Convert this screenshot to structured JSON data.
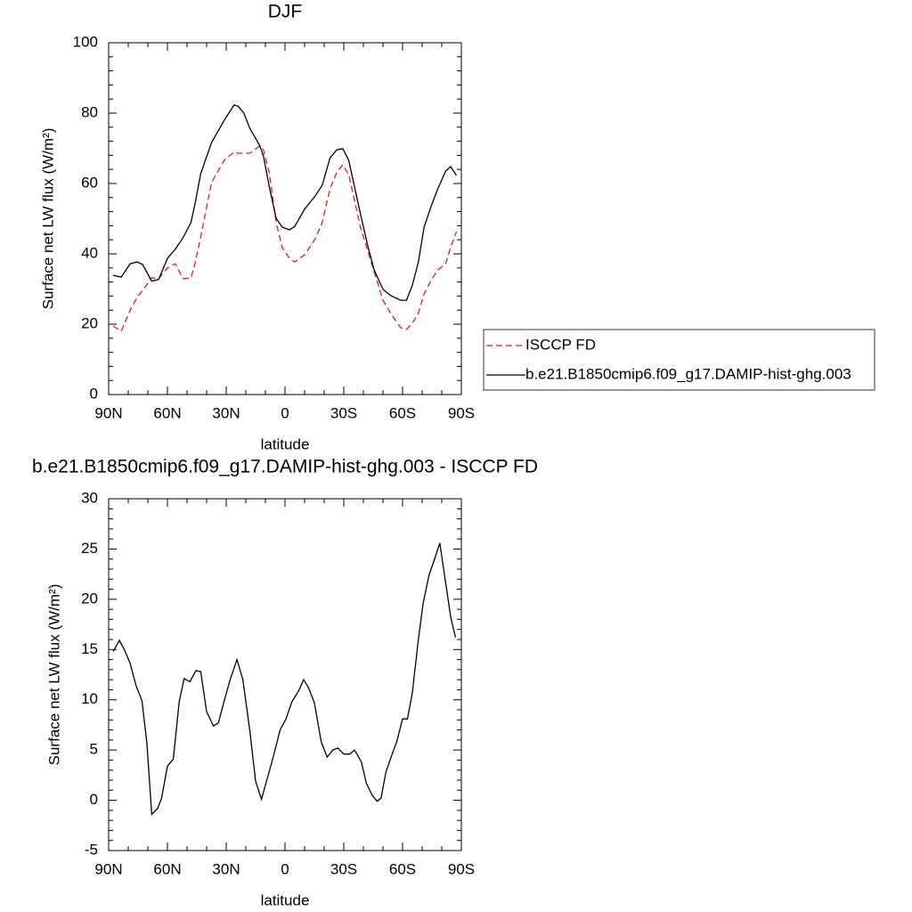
{
  "chart_data": [
    {
      "type": "line",
      "title": "DJF",
      "xlabel": "latitude",
      "ylabel": "Surface net LW flux (W/m²)",
      "x": [
        87.7,
        83.6,
        79,
        75.5,
        72.7,
        68,
        64.5,
        60,
        56,
        52,
        48,
        46,
        43,
        37.5,
        31,
        26,
        24,
        21,
        18,
        13,
        11,
        8,
        4.5,
        1.4,
        -2.3,
        -5,
        -10,
        -15.5,
        -19,
        -23,
        -26.5,
        -29.5,
        -32.5,
        -35.5,
        -38.5,
        -42,
        -45.5,
        -50,
        -54,
        -59,
        -62,
        -65,
        -68,
        -71,
        -74.5,
        -78,
        -82,
        -84.5,
        -87.5
      ],
      "series": [
        {
          "name": "ISCCP FD",
          "color": "#e8191e",
          "dashed": true,
          "values": [
            19.5,
            18,
            24,
            27.6,
            29.6,
            33.2,
            32.9,
            36,
            37.2,
            32.9,
            33.2,
            37,
            44.8,
            60.3,
            66.6,
            68.9,
            68.6,
            68.6,
            68.6,
            70.6,
            69.6,
            63,
            48.9,
            41.8,
            38.7,
            37.7,
            39.7,
            44.3,
            48.9,
            58.5,
            63.3,
            65.3,
            62.5,
            55.2,
            47.6,
            41.3,
            34.9,
            26.8,
            23,
            19,
            18.5,
            20.3,
            23,
            28.6,
            32.4,
            35.4,
            37.2,
            41.8,
            46.3
          ]
        },
        {
          "name": "b.e21.B1850cmip6.f09_g17.DAMIP-hist-ghg.003",
          "color": "#000000",
          "dashed": false,
          "values": [
            33.9,
            33.4,
            37.2,
            37.7,
            37,
            32.2,
            32.7,
            38.7,
            41.3,
            44.6,
            48.9,
            54,
            62.8,
            71.6,
            78,
            82.3,
            82,
            80,
            75.7,
            70.9,
            67.8,
            59,
            50.1,
            47.6,
            46.8,
            47.8,
            52.7,
            56.5,
            59.5,
            67.3,
            69.6,
            69.9,
            66.6,
            59,
            51.4,
            42.8,
            35.4,
            29.9,
            28.1,
            26.8,
            26.8,
            31.1,
            37.5,
            47.6,
            53.4,
            58.5,
            63.5,
            64.8,
            62.3
          ]
        }
      ],
      "xlim": [
        90,
        -90
      ],
      "xticks": [
        {
          "value": 90,
          "label": "90N"
        },
        {
          "value": 60,
          "label": "60N"
        },
        {
          "value": 30,
          "label": "30N"
        },
        0,
        {
          "value": -30,
          "label": "30S"
        },
        {
          "value": -60,
          "label": "60S"
        },
        {
          "value": -90,
          "label": "90S"
        }
      ],
      "ylim": [
        0,
        100
      ],
      "yticks": [
        0,
        20,
        40,
        60,
        80,
        100
      ],
      "legend": "right"
    },
    {
      "type": "line",
      "title": "b.e21.B1850cmip6.f09_g17.DAMIP-hist-ghg.003 - ISCCP FD",
      "xlabel": "latitude",
      "ylabel": "Surface net LW flux (W/m²)",
      "x": [
        87.7,
        84.5,
        82,
        79,
        76,
        73,
        70.5,
        68,
        65,
        63,
        60,
        57,
        54,
        51.5,
        48.5,
        45.5,
        43,
        40,
        36.5,
        34,
        31,
        28,
        24.5,
        21.5,
        18,
        15,
        12,
        9,
        6,
        2.5,
        -0.5,
        -3.5,
        -7,
        -9.5,
        -12,
        -15,
        -18.5,
        -21.5,
        -24.5,
        -27,
        -30,
        -33,
        -35.5,
        -39,
        -41.5,
        -44.5,
        -47,
        -49,
        -51.5,
        -54.5,
        -57,
        -60,
        -62.5,
        -65,
        -68,
        -70.5,
        -73.5,
        -76,
        -79,
        -81.5,
        -84.5,
        -87
      ],
      "series": [
        {
          "color": "#000000",
          "dashed": false,
          "values": [
            14.8,
            15.9,
            15,
            13.6,
            11.4,
            9.9,
            5.7,
            -1.4,
            -0.8,
            0.2,
            3.4,
            4.1,
            9.8,
            12.1,
            11.8,
            12.9,
            12.8,
            8.8,
            7.4,
            7.7,
            9.9,
            12,
            14,
            12,
            7,
            1.9,
            0.1,
            2.2,
            4.3,
            7,
            8.1,
            9.8,
            10.9,
            12,
            11.2,
            9.7,
            5.8,
            4.3,
            5,
            5.2,
            4.6,
            4.6,
            5,
            3.8,
            1.7,
            0.5,
            -0.1,
            0.2,
            2.8,
            4.5,
            5.8,
            8.1,
            8.1,
            10.7,
            15.9,
            19.6,
            22.4,
            23.8,
            25.6,
            22.3,
            18.3,
            16.2
          ]
        }
      ],
      "xlim": [
        90,
        -90
      ],
      "xticks": [
        {
          "value": 90,
          "label": "90N"
        },
        {
          "value": 60,
          "label": "60N"
        },
        {
          "value": 30,
          "label": "30N"
        },
        0,
        {
          "value": -30,
          "label": "30S"
        },
        {
          "value": -60,
          "label": "60S"
        },
        {
          "value": -90,
          "label": "90S"
        }
      ],
      "ylim": [
        -5,
        30
      ],
      "yticks": [
        -5,
        0,
        5,
        10,
        15,
        20,
        25,
        30
      ]
    }
  ]
}
